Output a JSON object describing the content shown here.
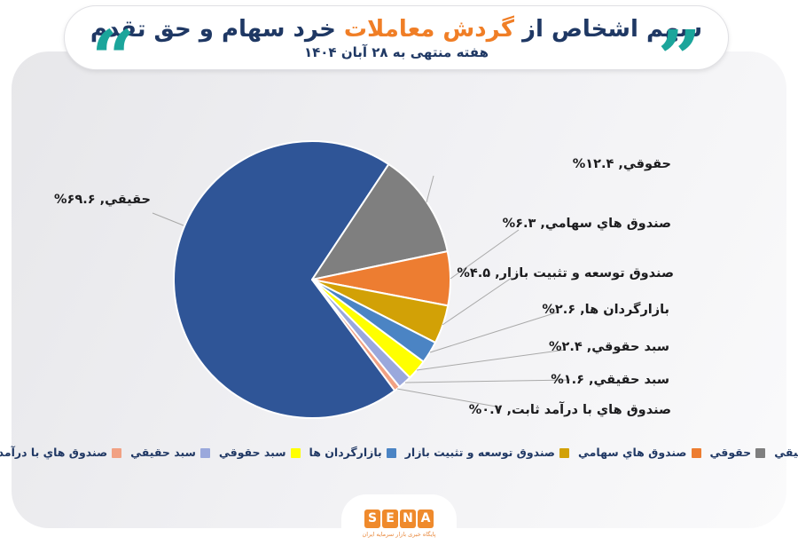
{
  "header": {
    "open_quote": "“",
    "close_quote": "”",
    "title_part1": "سهم اشخاص از",
    "title_highlight": "گردش معاملات",
    "title_part2": "خرد سهام و حق تقدم",
    "subtitle": "هفته منتهی به ۲۸ آبان ۱۴۰۴",
    "accent_teal": "#1BA59B",
    "accent_orange": "#F07E26",
    "title_navy": "#1F3864"
  },
  "chart_data": {
    "type": "pie",
    "title": "سهم اشخاص از گردش معاملات خرد سهام و حق تقدم",
    "subtitle": "هفته منتهی به ۲۸ آبان ۱۴۰۴",
    "unit": "%",
    "direction": "clockwise",
    "rotation_deg": 143.3,
    "legend_position": "bottom",
    "label_separator": ",",
    "categories": [
      "حقیقي",
      "حقوقي",
      "صندوق هاي سهامي",
      "صندوق توسعه و تثبیت بازار",
      "بازارگردان ها",
      "سبد حقوقي",
      "سبد حقیقي",
      "صندوق هاي با درآمد ثابت"
    ],
    "values": [
      69.6,
      12.4,
      6.3,
      4.5,
      2.6,
      2.4,
      1.6,
      0.7
    ],
    "value_display": [
      "%۶۹.۶",
      "%۱۲.۴",
      "%۶.۳",
      "%۴.۵",
      "%۲.۶",
      "%۲.۴",
      "%۱.۶",
      "%۰.۷"
    ],
    "colors": [
      "#2F5597",
      "#7F7F7F",
      "#ED7D31",
      "#D2A106",
      "#4B84C4",
      "#FFFF00",
      "#9AA8DC",
      "#F1A183"
    ]
  },
  "footer": {
    "logo_letters": [
      "S",
      "E",
      "N",
      "A"
    ],
    "logo_tagline": "پایگاه خبری بازار سرمایه ایران",
    "logo_color": "#EF8A2C"
  }
}
